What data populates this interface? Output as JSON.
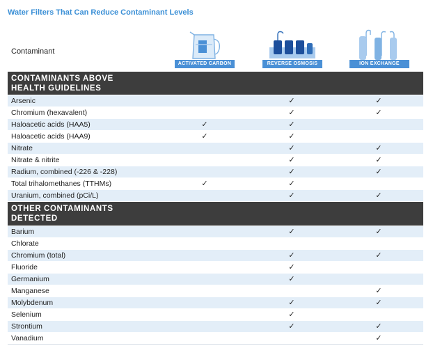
{
  "title": "Water Filters That Can Reduce Contaminant Levels",
  "contaminant_label": "Contaminant",
  "filters": [
    {
      "label": "ACTIVATED CARBON",
      "icon": "pitcher-filter-icon"
    },
    {
      "label": "REVERSE OSMOSIS",
      "icon": "reverse-osmosis-unit-icon"
    },
    {
      "label": "ION EXCHANGE",
      "icon": "ion-exchange-tanks-icon"
    }
  ],
  "check_glyph": "✓",
  "colors": {
    "accent": "#3a8fd6",
    "tag": "#4a90d6",
    "section": "#3d3d3d",
    "alt_row": "#e3eef8"
  },
  "sections": [
    {
      "title": "CONTAMINANTS ABOVE HEALTH GUIDELINES",
      "title_lines": [
        "CONTAMINANTS ABOVE",
        "HEALTH GUIDELINES"
      ],
      "rows": [
        {
          "name": "Arsenic",
          "carbon": "",
          "ro": "✓",
          "ion": "✓"
        },
        {
          "name": "Chromium (hexavalent)",
          "carbon": "",
          "ro": "✓",
          "ion": "✓"
        },
        {
          "name": "Haloacetic acids (HAA5)",
          "carbon": "✓",
          "ro": "✓",
          "ion": ""
        },
        {
          "name": "Haloacetic acids (HAA9)",
          "carbon": "✓",
          "ro": "✓",
          "ion": ""
        },
        {
          "name": "Nitrate",
          "carbon": "",
          "ro": "✓",
          "ion": "✓"
        },
        {
          "name": "Nitrate & nitrite",
          "carbon": "",
          "ro": "✓",
          "ion": "✓"
        },
        {
          "name": "Radium, combined (-226 & -228)",
          "carbon": "",
          "ro": "✓",
          "ion": "✓"
        },
        {
          "name": "Total trihalomethanes (TTHMs)",
          "carbon": "✓",
          "ro": "✓",
          "ion": ""
        },
        {
          "name": "Uranium, combined (pCi/L)",
          "carbon": "",
          "ro": "✓",
          "ion": "✓"
        }
      ]
    },
    {
      "title": "OTHER CONTAMINANTS DETECTED",
      "title_lines": [
        "OTHER CONTAMINANTS",
        "DETECTED"
      ],
      "rows": [
        {
          "name": "Barium",
          "carbon": "",
          "ro": "✓",
          "ion": "✓"
        },
        {
          "name": "Chlorate",
          "carbon": "",
          "ro": "",
          "ion": ""
        },
        {
          "name": "Chromium (total)",
          "carbon": "",
          "ro": "✓",
          "ion": "✓"
        },
        {
          "name": "Fluoride",
          "carbon": "",
          "ro": "✓",
          "ion": ""
        },
        {
          "name": "Germanium",
          "carbon": "",
          "ro": "✓",
          "ion": ""
        },
        {
          "name": "Manganese",
          "carbon": "",
          "ro": "",
          "ion": "✓"
        },
        {
          "name": "Molybdenum",
          "carbon": "",
          "ro": "✓",
          "ion": "✓"
        },
        {
          "name": "Selenium",
          "carbon": "",
          "ro": "✓",
          "ion": ""
        },
        {
          "name": "Strontium",
          "carbon": "",
          "ro": "✓",
          "ion": "✓"
        },
        {
          "name": "Vanadium",
          "carbon": "",
          "ro": "",
          "ion": "✓"
        }
      ]
    }
  ]
}
